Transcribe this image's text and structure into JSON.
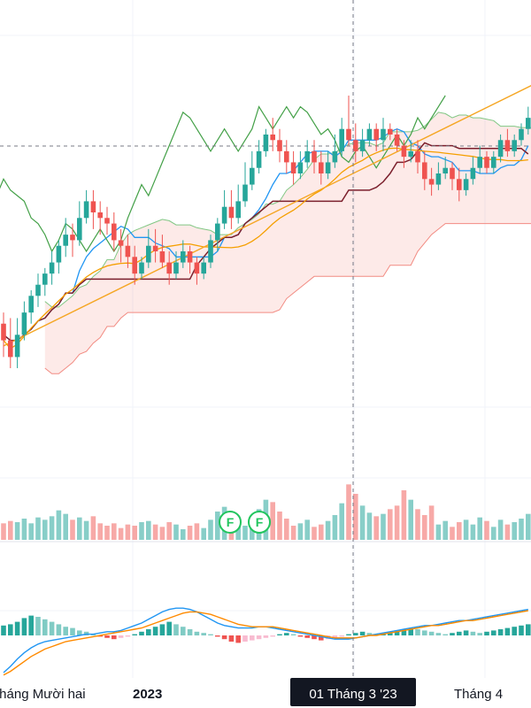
{
  "chart_data": {
    "type": "candlestick",
    "time_axis": {
      "labels": [
        "Tháng Mười hai",
        "2023",
        "Tháng 4"
      ],
      "crosshair_label": "01 Tháng 3 '23"
    },
    "markers": [
      "F",
      "F"
    ],
    "colors": {
      "up": "#26a69a",
      "down": "#ef5350",
      "tenkan": "#2196f3",
      "kijun": "#7b1f2c",
      "chikou": "#43a047",
      "span_a": "#81c784",
      "span_b": "#f28b82",
      "trendline": "#f5a623",
      "ma": "#f59f00",
      "macd": "#2196f3",
      "signal": "#ff8a00"
    },
    "price_pane": {
      "candles": [
        [
          55,
          52,
          57,
          49
        ],
        [
          52,
          49,
          56,
          47
        ],
        [
          49,
          53,
          56,
          47
        ],
        [
          53,
          57,
          59,
          52
        ],
        [
          57,
          60,
          61,
          55
        ],
        [
          60,
          62,
          64,
          58
        ],
        [
          62,
          64,
          65,
          60
        ],
        [
          64,
          66,
          68,
          62
        ],
        [
          66,
          69,
          70,
          64
        ],
        [
          69,
          71,
          74,
          67
        ],
        [
          71,
          70,
          73,
          67
        ],
        [
          70,
          74,
          77,
          69
        ],
        [
          74,
          77,
          79,
          73
        ],
        [
          77,
          75,
          79,
          72
        ],
        [
          75,
          74,
          77,
          71
        ],
        [
          74,
          73,
          76,
          71
        ],
        [
          73,
          70,
          75,
          68
        ],
        [
          70,
          69,
          72,
          66
        ],
        [
          69,
          67,
          71,
          65
        ],
        [
          67,
          64,
          69,
          62
        ],
        [
          64,
          66,
          67,
          63
        ],
        [
          66,
          69,
          72,
          65
        ],
        [
          69,
          68,
          72,
          66
        ],
        [
          68,
          66,
          71,
          65
        ],
        [
          66,
          64,
          68,
          62
        ],
        [
          64,
          66,
          68,
          63
        ],
        [
          66,
          68,
          70,
          65
        ],
        [
          68,
          66,
          69,
          64
        ],
        [
          66,
          64,
          67,
          62
        ],
        [
          64,
          66,
          67,
          63
        ],
        [
          66,
          70,
          71,
          65
        ],
        [
          70,
          73,
          74,
          68
        ],
        [
          73,
          76,
          79,
          72
        ],
        [
          76,
          74,
          79,
          72
        ],
        [
          74,
          77,
          80,
          73
        ],
        [
          77,
          80,
          84,
          76
        ],
        [
          80,
          83,
          86,
          79
        ],
        [
          83,
          86,
          88,
          82
        ],
        [
          86,
          89,
          90,
          85
        ],
        [
          89,
          88,
          92,
          86
        ],
        [
          88,
          86,
          90,
          84
        ],
        [
          86,
          84,
          88,
          82
        ],
        [
          84,
          82,
          86,
          80
        ],
        [
          82,
          84,
          86,
          81
        ],
        [
          84,
          86,
          88,
          83
        ],
        [
          86,
          84,
          88,
          82
        ],
        [
          84,
          82,
          86,
          80
        ],
        [
          82,
          84,
          86,
          81
        ],
        [
          84,
          86,
          89,
          83
        ],
        [
          86,
          90,
          92,
          85
        ],
        [
          90,
          88,
          96,
          87
        ],
        [
          88,
          86,
          91,
          84
        ],
        [
          86,
          88,
          90,
          85
        ],
        [
          88,
          90,
          91,
          87
        ],
        [
          90,
          88,
          91,
          86
        ],
        [
          88,
          90,
          92,
          86
        ],
        [
          90,
          89,
          91,
          88
        ],
        [
          89,
          87,
          90,
          86
        ],
        [
          87,
          85,
          88,
          83
        ],
        [
          85,
          86,
          88,
          84
        ],
        [
          86,
          84,
          88,
          82
        ],
        [
          84,
          81,
          86,
          79
        ],
        [
          81,
          80,
          83,
          78
        ],
        [
          80,
          82,
          84,
          79
        ],
        [
          82,
          83,
          85,
          81
        ],
        [
          83,
          81,
          84,
          79
        ],
        [
          81,
          79,
          83,
          77
        ],
        [
          79,
          81,
          82,
          78
        ],
        [
          81,
          83,
          85,
          80
        ],
        [
          83,
          85,
          87,
          82
        ],
        [
          85,
          83,
          86,
          82
        ],
        [
          83,
          85,
          86,
          82
        ],
        [
          85,
          88,
          89,
          84
        ],
        [
          88,
          86,
          90,
          85
        ],
        [
          86,
          88,
          89,
          85
        ],
        [
          88,
          90,
          91,
          87
        ],
        [
          90,
          92,
          94,
          89
        ]
      ],
      "volume": [
        14,
        16,
        15,
        18,
        14,
        19,
        17,
        20,
        25,
        22,
        17,
        19,
        16,
        20,
        14,
        12,
        14,
        10,
        13,
        12,
        15,
        16,
        13,
        11,
        15,
        13,
        9,
        12,
        14,
        10,
        17,
        24,
        28,
        21,
        18,
        12,
        16,
        26,
        34,
        32,
        24,
        18,
        12,
        14,
        17,
        11,
        13,
        16,
        21,
        31,
        47,
        39,
        29,
        23,
        20,
        22,
        26,
        29,
        42,
        34,
        26,
        21,
        29,
        13,
        16,
        11,
        15,
        17,
        13,
        19,
        16,
        11,
        17,
        13,
        15,
        18,
        22
      ],
      "macd": {
        "histogram": [
          0.8,
          0.9,
          1.1,
          1.4,
          1.6,
          1.5,
          1.3,
          1.1,
          0.9,
          0.7,
          0.6,
          0.4,
          0.3,
          0.1,
          -0.1,
          -0.2,
          -0.3,
          -0.2,
          -0.1,
          0.1,
          0.3,
          0.5,
          0.7,
          0.9,
          1.1,
          0.9,
          0.7,
          0.5,
          0.3,
          0.2,
          0.1,
          -0.1,
          -0.3,
          -0.5,
          -0.6,
          -0.5,
          -0.4,
          -0.3,
          -0.2,
          -0.1,
          0.1,
          0.2,
          0.1,
          -0.1,
          -0.2,
          -0.3,
          -0.4,
          -0.3,
          -0.2,
          -0.1,
          0.1,
          0.2,
          0.3,
          0.2,
          0.1,
          0.2,
          0.3,
          0.4,
          0.5,
          0.6,
          0.5,
          0.4,
          0.3,
          0.2,
          0.1,
          0.2,
          0.3,
          0.4,
          0.3,
          0.2,
          0.3,
          0.4,
          0.5,
          0.6,
          0.7,
          0.8,
          0.9
        ],
        "macd_line": [
          -3.0,
          -2.5,
          -1.9,
          -1.4,
          -1.0,
          -0.7,
          -0.5,
          -0.4,
          -0.3,
          -0.2,
          -0.1,
          0.0,
          0.1,
          0.1,
          0.2,
          0.3,
          0.3,
          0.4,
          0.6,
          0.8,
          1.0,
          1.3,
          1.6,
          1.9,
          2.1,
          2.2,
          2.2,
          2.1,
          1.9,
          1.6,
          1.3,
          1.0,
          0.8,
          0.7,
          0.6,
          0.6,
          0.6,
          0.7,
          0.7,
          0.6,
          0.5,
          0.4,
          0.3,
          0.2,
          0.1,
          0.0,
          -0.1,
          -0.2,
          -0.3,
          -0.3,
          -0.3,
          -0.2,
          -0.1,
          0.0,
          0.1,
          0.2,
          0.3,
          0.4,
          0.5,
          0.6,
          0.7,
          0.8,
          0.8,
          0.9,
          1.0,
          1.1,
          1.2,
          1.2,
          1.3,
          1.4,
          1.5,
          1.6,
          1.7,
          1.8,
          1.9,
          2.0,
          2.1
        ],
        "signal_line": [
          -3.2,
          -2.9,
          -2.5,
          -2.1,
          -1.7,
          -1.4,
          -1.1,
          -0.9,
          -0.7,
          -0.5,
          -0.4,
          -0.3,
          -0.2,
          -0.1,
          0.0,
          0.1,
          0.2,
          0.3,
          0.4,
          0.5,
          0.6,
          0.8,
          1.0,
          1.2,
          1.4,
          1.6,
          1.8,
          1.9,
          1.9,
          1.8,
          1.7,
          1.5,
          1.3,
          1.1,
          0.9,
          0.8,
          0.7,
          0.7,
          0.7,
          0.7,
          0.6,
          0.5,
          0.4,
          0.3,
          0.2,
          0.1,
          0.0,
          -0.1,
          -0.2,
          -0.2,
          -0.2,
          -0.2,
          -0.1,
          0.0,
          0.0,
          0.1,
          0.2,
          0.3,
          0.4,
          0.5,
          0.6,
          0.7,
          0.8,
          0.8,
          0.9,
          1.0,
          1.1,
          1.2,
          1.2,
          1.3,
          1.4,
          1.5,
          1.6,
          1.7,
          1.8,
          1.9,
          2.0
        ]
      }
    }
  }
}
